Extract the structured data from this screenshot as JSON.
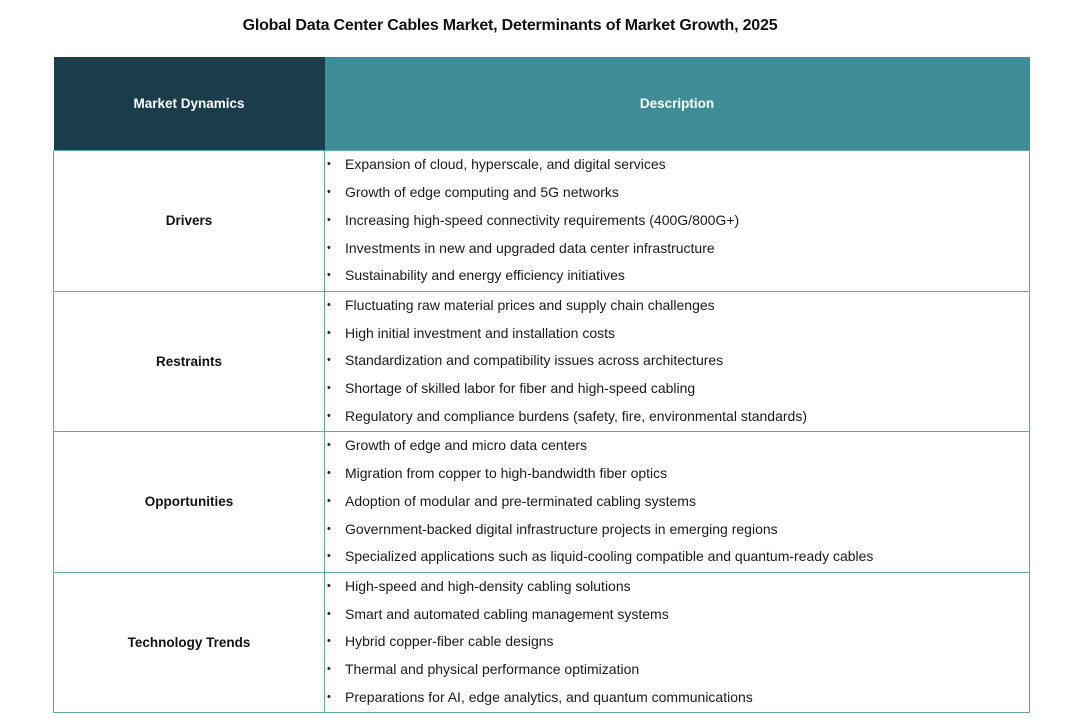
{
  "title": "Global Data Center Cables Market, Determinants of Market Growth, 2025",
  "colors": {
    "header_left_bg": "#1a3c4b",
    "header_right_bg": "#3d8d96",
    "border": "#5fa6ad"
  },
  "table": {
    "headers": [
      "Market Dynamics",
      "Description"
    ],
    "rows": [
      {
        "category": "Drivers",
        "items": [
          "Expansion of cloud, hyperscale, and digital services",
          "Growth of edge computing and 5G networks",
          "Increasing high-speed connectivity requirements (400G/800G+)",
          "Investments in new and upgraded data center infrastructure",
          "Sustainability and energy efficiency initiatives"
        ]
      },
      {
        "category": "Restraints",
        "items": [
          "Fluctuating raw material prices and supply chain challenges",
          "High initial investment and installation costs",
          "Standardization and compatibility issues across architectures",
          "Shortage of skilled labor for fiber and high-speed cabling",
          "Regulatory and compliance burdens (safety, fire, environmental standards)"
        ]
      },
      {
        "category": "Opportunities",
        "items": [
          "Growth of edge and micro data centers",
          "Migration from copper to high-bandwidth fiber optics",
          "Adoption of modular and pre-terminated cabling systems",
          "Government-backed digital infrastructure projects in emerging regions",
          "Specialized applications such as liquid-cooling compatible and quantum-ready cables"
        ]
      },
      {
        "category": "Technology Trends",
        "items": [
          "High-speed and high-density cabling solutions",
          "Smart and automated cabling management systems",
          "Hybrid copper-fiber cable designs",
          "Thermal and physical performance optimization",
          "Preparations for AI, edge analytics, and quantum communications"
        ]
      }
    ]
  },
  "bullet_glyph": "•"
}
